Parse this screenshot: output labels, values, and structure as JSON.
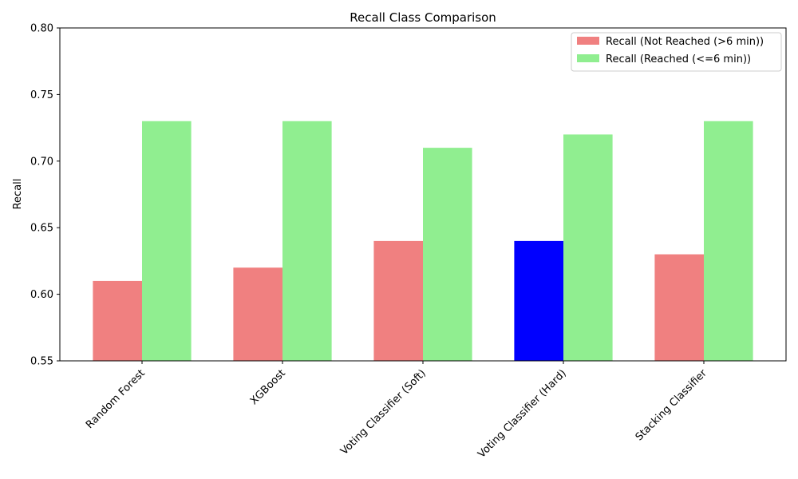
{
  "chart_data": {
    "type": "bar",
    "title": "Recall Class Comparison",
    "xlabel": "",
    "ylabel": "Recall",
    "ylim": [
      0.55,
      0.8
    ],
    "yticks": [
      "0.55",
      "0.60",
      "0.65",
      "0.70",
      "0.75",
      "0.80"
    ],
    "categories": [
      "Random Forest",
      "XGBoost",
      "Voting Classifier (Soft)",
      "Voting Classifier (Hard)",
      "Stacking Classifier"
    ],
    "series": [
      {
        "name": "Recall (Not Reached (>6 min))",
        "values": [
          0.61,
          0.62,
          0.64,
          0.64,
          0.63
        ],
        "color": "#f08080",
        "highlight": {
          "index": 3,
          "color": "#0000ff"
        }
      },
      {
        "name": "Recall (Reached (<=6 min))",
        "values": [
          0.73,
          0.73,
          0.71,
          0.72,
          0.73
        ],
        "color": "#90ee90"
      }
    ],
    "legend": "top-right",
    "grid": false
  }
}
